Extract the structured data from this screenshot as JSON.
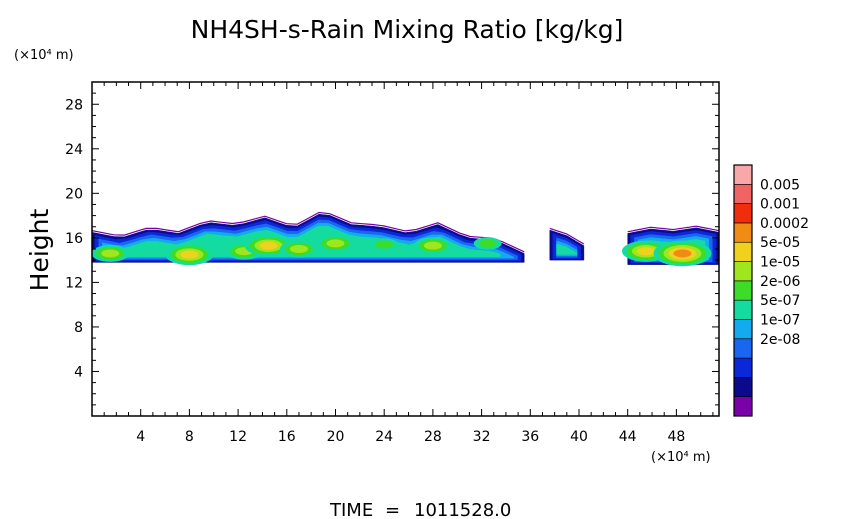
{
  "chart_data": {
    "type": "heatmap",
    "title": "NH4SH-s-Rain Mixing Ratio [kg/kg]",
    "ylabel": "Height",
    "y_unit": "(×10⁴ m)",
    "x_unit": "(×10⁴ m)",
    "xlim": [
      0,
      51.5
    ],
    "ylim": [
      0,
      30
    ],
    "xticks": [
      4,
      8,
      12,
      16,
      20,
      24,
      28,
      32,
      36,
      40,
      44,
      48
    ],
    "yticks": [
      4,
      8,
      12,
      16,
      20,
      24,
      28
    ],
    "colorbar": {
      "labels": [
        "0.005",
        "0.001",
        "0.0002",
        "5e-05",
        "1e-05",
        "2e-06",
        "5e-07",
        "1e-07",
        "2e-08"
      ],
      "colors": [
        "#7a00a8",
        "#0c0a8c",
        "#0a28d8",
        "#1a66f0",
        "#14aaf0",
        "#14dca0",
        "#3cdc28",
        "#a0e61e",
        "#f0d21e",
        "#f08c14",
        "#f02d0c",
        "#f06464",
        "#f8a8a8"
      ]
    },
    "layer": {
      "regions": [
        {
          "x": [
            0,
            35.5
          ],
          "bottom": 13.8,
          "top": [
            16.5,
            16.0,
            16.8,
            16.4,
            17.4,
            17.1,
            17.8,
            16.9,
            18.3,
            17.2,
            17.0,
            16.4,
            17.2,
            16.0,
            15.8,
            14.6
          ]
        },
        {
          "x": [
            37.6,
            40.4
          ],
          "bottom": 14.0,
          "top": [
            16.7,
            16.2,
            15.3
          ]
        },
        {
          "x": [
            44.0,
            51.5
          ],
          "bottom": 13.6,
          "top": [
            16.4,
            16.8,
            16.6,
            16.9,
            16.5
          ]
        }
      ],
      "peaks": [
        {
          "x": 1.5,
          "y": 14.6,
          "level": 7
        },
        {
          "x": 8.0,
          "y": 14.5,
          "level": 8
        },
        {
          "x": 12.5,
          "y": 14.8,
          "level": 7
        },
        {
          "x": 14.5,
          "y": 15.3,
          "level": 8
        },
        {
          "x": 17.0,
          "y": 15.0,
          "level": 7
        },
        {
          "x": 20.0,
          "y": 15.5,
          "level": 7
        },
        {
          "x": 24.0,
          "y": 15.4,
          "level": 6
        },
        {
          "x": 28.0,
          "y": 15.3,
          "level": 7
        },
        {
          "x": 32.5,
          "y": 15.5,
          "level": 6
        },
        {
          "x": 45.5,
          "y": 14.8,
          "level": 8
        },
        {
          "x": 48.5,
          "y": 14.6,
          "level": 9
        }
      ]
    }
  },
  "footer": {
    "time_label": "TIME",
    "equals": "=",
    "time_value": "1011528.0"
  }
}
